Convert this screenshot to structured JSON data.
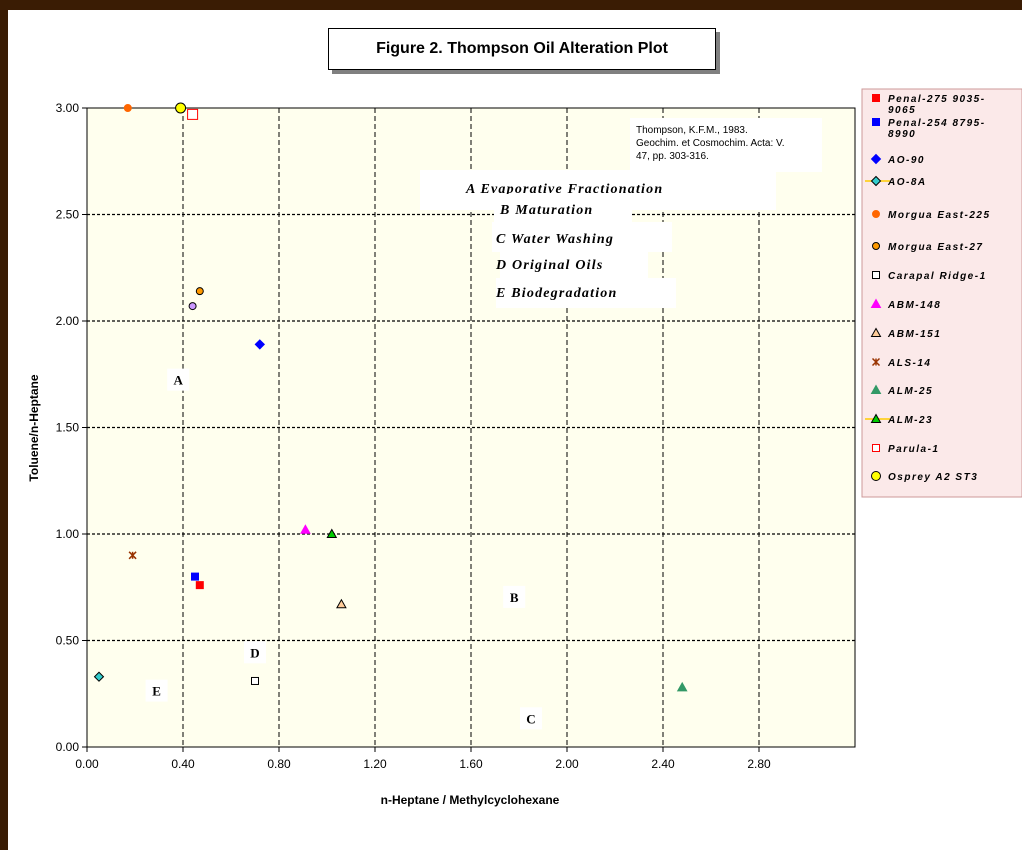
{
  "title": "Figure 2. Thompson Oil Alteration Plot",
  "chart_data": {
    "type": "scatter",
    "title": "Figure 2. Thompson Oil Alteration Plot",
    "xlabel": "n-Heptane / Methylcyclohexane",
    "ylabel": "Toluene/n-Heptane",
    "xlim": [
      0,
      3.2
    ],
    "ylim": [
      0,
      3.0
    ],
    "x_ticks": [
      "0.00",
      "0.40",
      "0.80",
      "1.20",
      "1.60",
      "2.00",
      "2.40",
      "2.80"
    ],
    "y_ticks": [
      "0.00",
      "0.50",
      "1.00",
      "1.50",
      "2.00",
      "2.50",
      "3.00"
    ],
    "grid": "dashed",
    "legend_position": "right",
    "background": "#ffffee",
    "series": [
      {
        "name": "Penal-275 9035-9065",
        "marker": "square",
        "color": "#ff0000",
        "fill": "#ff0000",
        "points": [
          [
            0.47,
            0.76
          ]
        ]
      },
      {
        "name": "Penal-254 8795-8990",
        "marker": "square",
        "color": "#0000ff",
        "fill": "#0000ff",
        "points": [
          [
            0.45,
            0.8
          ]
        ]
      },
      {
        "name": "AO-90",
        "marker": "diamond",
        "color": "#0000ff",
        "fill": "#0000ff",
        "points": [
          [
            0.72,
            1.89
          ]
        ]
      },
      {
        "name": "AO-8A",
        "marker": "diamond",
        "color": "#000000",
        "fill": "#33cccc",
        "points": [
          [
            0.05,
            0.33
          ]
        ]
      },
      {
        "name": "Morgua East-225",
        "marker": "circle",
        "color": "#ff6600",
        "fill": "#ff6600",
        "points": [
          [
            0.17,
            3.0
          ]
        ]
      },
      {
        "name": "Morgua East-27",
        "marker": "circle",
        "color": "#000000",
        "fill": "#ff9900",
        "points": [
          [
            0.47,
            2.14
          ]
        ]
      },
      {
        "name": "Carapal Ridge-1",
        "marker": "square",
        "color": "#000000",
        "fill": "#ffffff",
        "points": [
          [
            0.7,
            0.31
          ]
        ]
      },
      {
        "name": "ABM-148",
        "marker": "triangle",
        "color": "#ff00ff",
        "fill": "#ff00ff",
        "points": [
          [
            0.91,
            1.02
          ]
        ]
      },
      {
        "name": "ABM-151",
        "marker": "triangle",
        "color": "#000000",
        "fill": "#ffcc99",
        "points": [
          [
            1.06,
            0.67
          ]
        ]
      },
      {
        "name": "ALS-14",
        "marker": "star",
        "color": "#993300",
        "fill": "none",
        "points": [
          [
            0.19,
            0.9
          ]
        ]
      },
      {
        "name": "ALM-25",
        "marker": "triangle",
        "color": "#339966",
        "fill": "#339966",
        "points": [
          [
            2.48,
            0.28
          ]
        ]
      },
      {
        "name": "ALM-23",
        "marker": "triangle",
        "color": "#000000",
        "fill": "#00cc00",
        "points": [
          [
            1.02,
            1.0
          ]
        ]
      },
      {
        "name": "Parula-1",
        "marker": "square",
        "color": "#ff0000",
        "fill": "#ffffff",
        "points": [
          [
            0.44,
            2.97
          ]
        ]
      },
      {
        "name": "Osprey A2 ST3",
        "marker": "circle",
        "color": "#000000",
        "fill": "#ffff00",
        "points": [
          [
            0.39,
            3.0
          ]
        ]
      },
      {
        "name": "",
        "marker": "circle",
        "color": "#000000",
        "fill": "#cc99ff",
        "points": [
          [
            0.44,
            2.07
          ]
        ]
      }
    ],
    "region_labels": [
      {
        "text": "A",
        "x": 0.38,
        "y": 1.72
      },
      {
        "text": "B",
        "x": 1.78,
        "y": 0.7
      },
      {
        "text": "C",
        "x": 1.85,
        "y": 0.13
      },
      {
        "text": "D",
        "x": 0.7,
        "y": 0.44
      },
      {
        "text": "E",
        "x": 0.29,
        "y": 0.26
      }
    ],
    "annotations": [
      "A  Evaporative Fractionation",
      "B  Maturation",
      "C  Water Washing",
      "D  Original Oils",
      "E  Biodegradation"
    ],
    "reference": "Thompson, K.F.M., 1983. Geochim. et Cosmochim. Acta: V. 47, pp. 303-316."
  }
}
